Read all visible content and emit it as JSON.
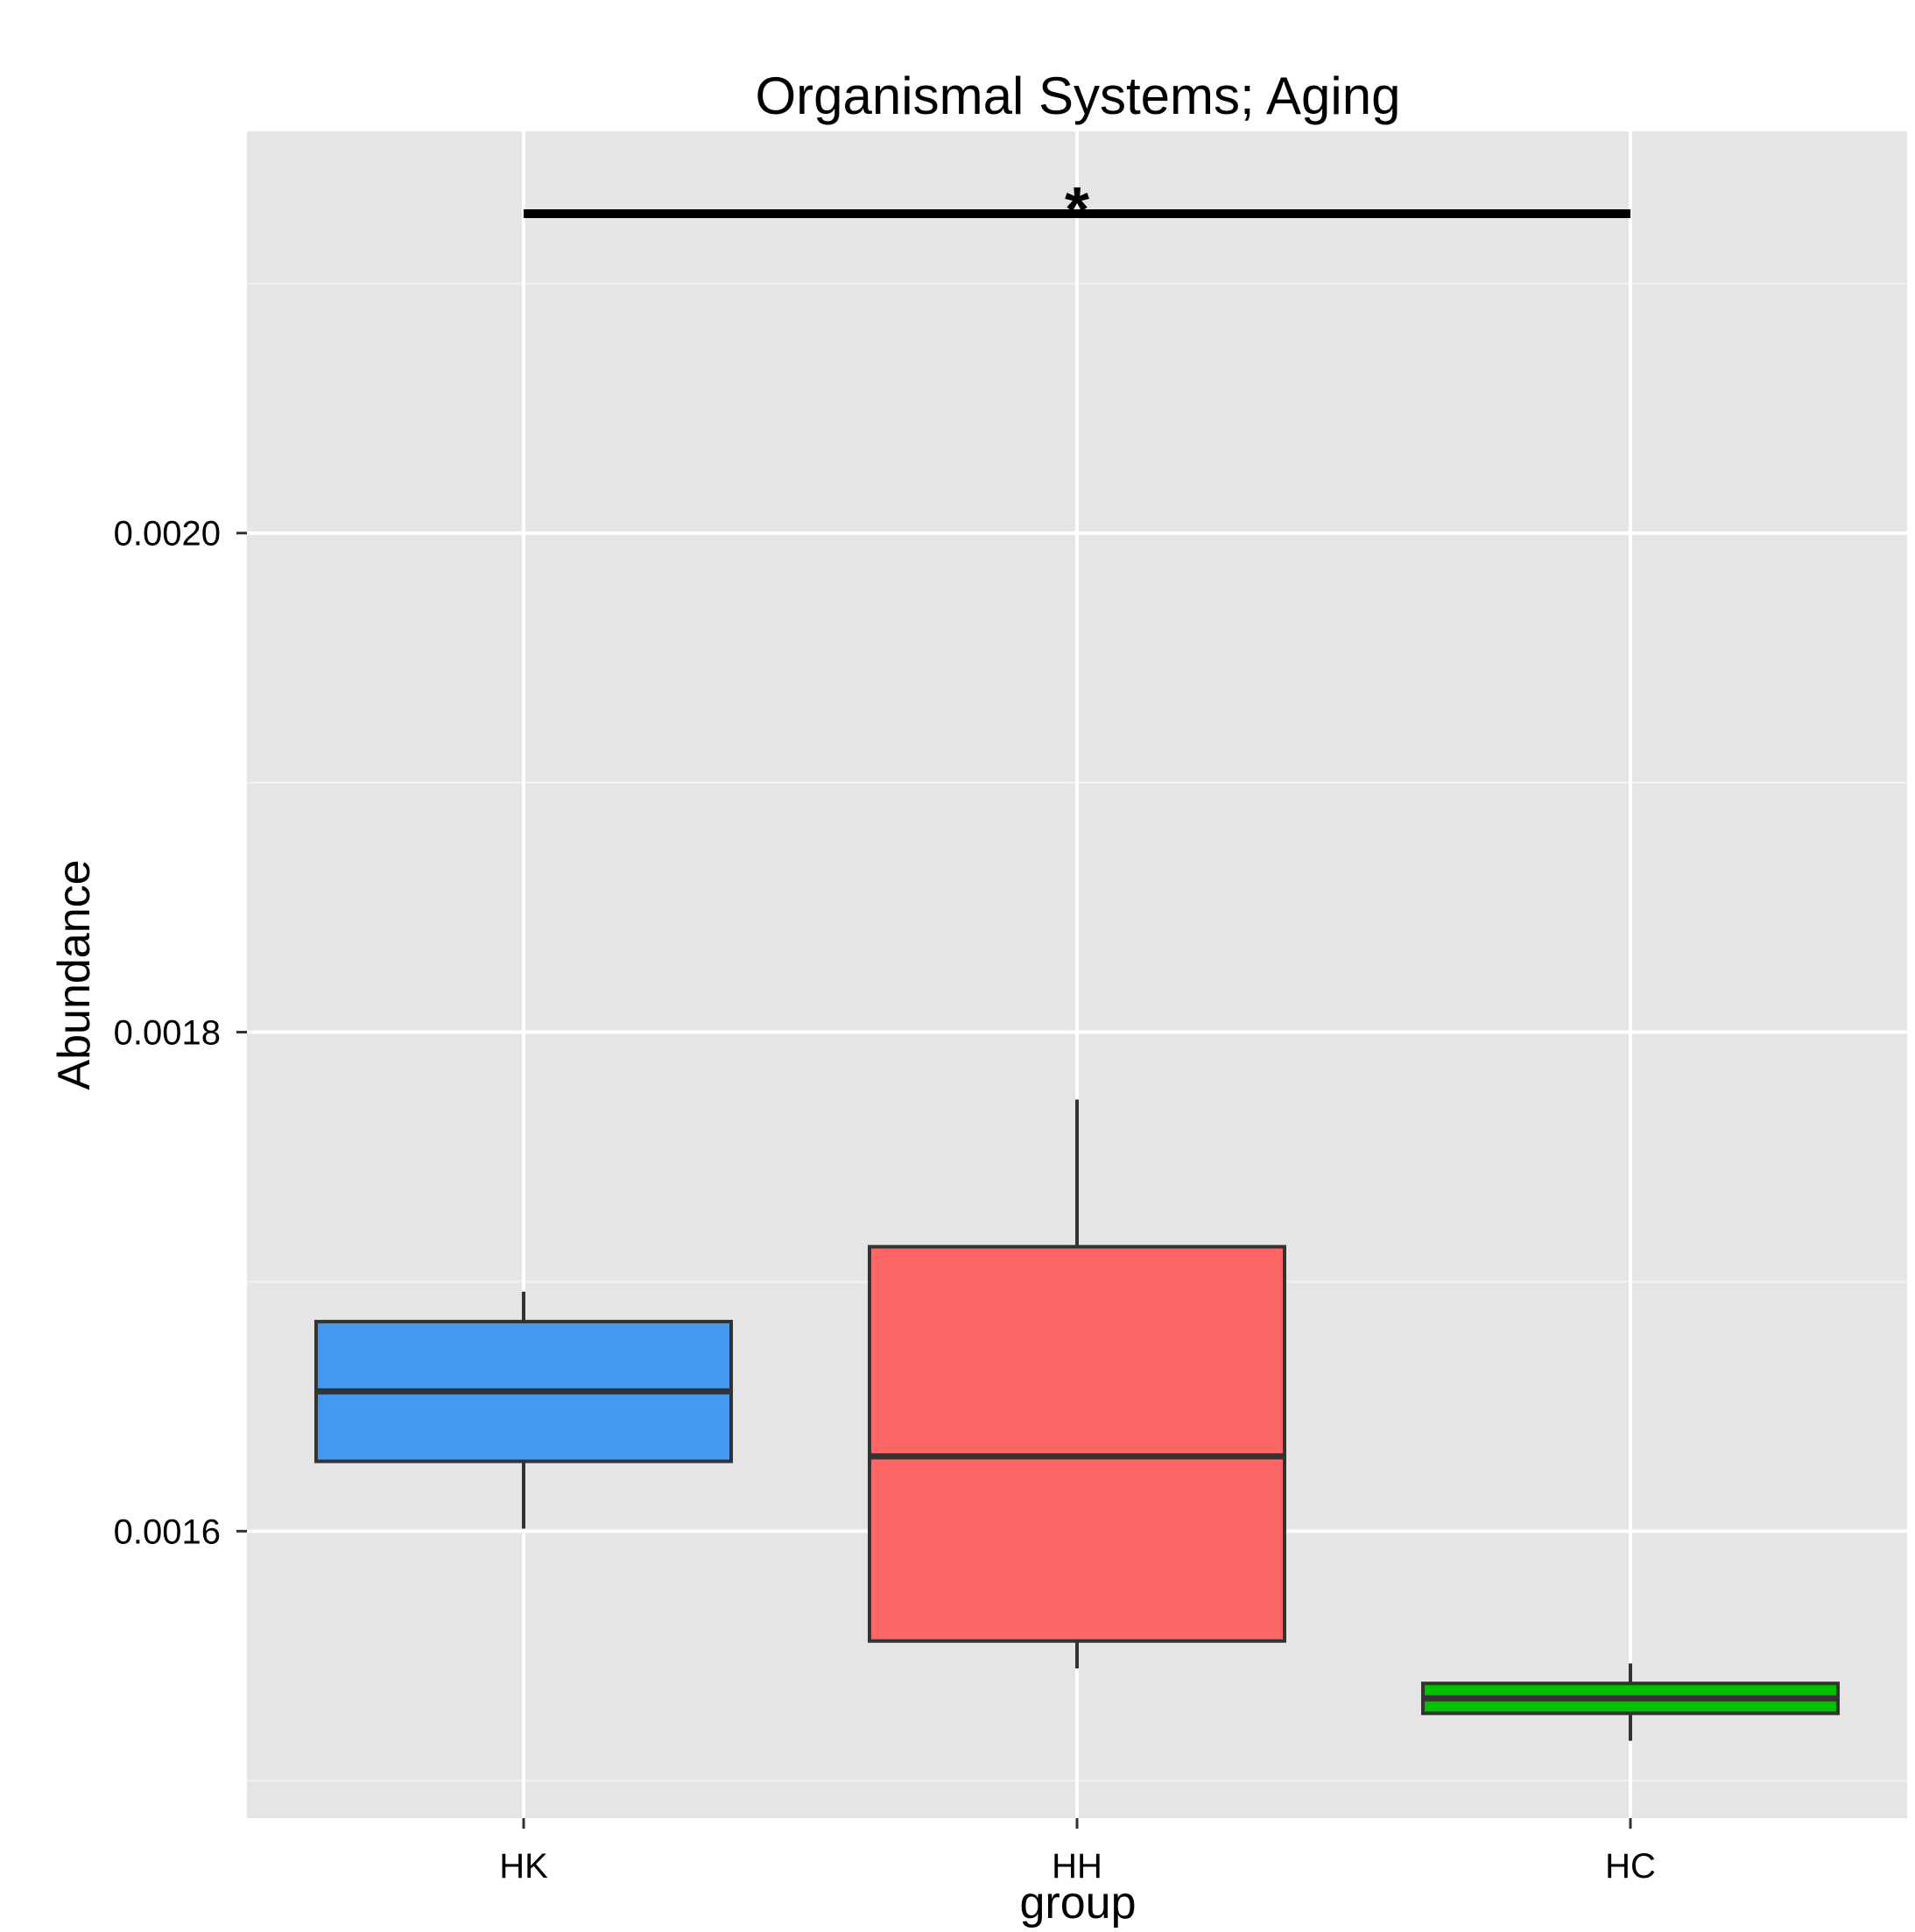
{
  "chart_data": {
    "type": "box",
    "title": "Organismal Systems; Aging",
    "xlabel": "group",
    "ylabel": "Abundance",
    "categories": [
      "HK",
      "HH",
      "HC"
    ],
    "boxes": [
      {
        "group": "HK",
        "whisker_low": 0.001601,
        "q1": 0.001628,
        "median": 0.001656,
        "q3": 0.001684,
        "whisker_high": 0.001696,
        "fill": "#4499EE"
      },
      {
        "group": "HH",
        "whisker_low": 0.001545,
        "q1": 0.001556,
        "median": 0.00163,
        "q3": 0.001714,
        "whisker_high": 0.001773,
        "fill": "#FF6666"
      },
      {
        "group": "HC",
        "whisker_low": 0.001516,
        "q1": 0.001527,
        "median": 0.001533,
        "q3": 0.001539,
        "whisker_high": 0.001547,
        "fill": "#00C000"
      }
    ],
    "ylim": [
      0.001485,
      0.002161
    ],
    "yticks": [
      0.0016,
      0.0018,
      0.002
    ],
    "ytick_labels": [
      "0.0016",
      "0.0018",
      "0.0020"
    ],
    "grid": true,
    "panel_color": "#E5E5E5",
    "significance": {
      "from": "HK",
      "to": "HC",
      "label": "*",
      "y": 0.002128
    }
  }
}
